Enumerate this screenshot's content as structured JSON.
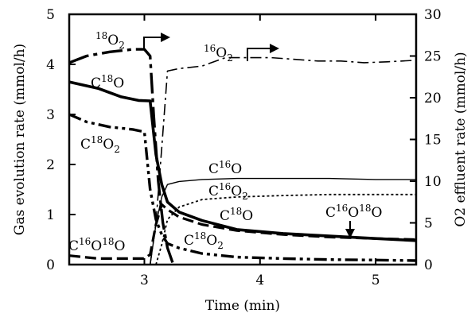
{
  "chart_data": {
    "type": "line",
    "xlabel": "Time (min)",
    "ylabel": "Gas evolution rate (mmol/h)",
    "y2label": "O2 effluent rate (mmol/h)",
    "xlim": [
      2.35,
      5.35
    ],
    "ylim": [
      0,
      5
    ],
    "y2lim": [
      0,
      30
    ],
    "x_ticks": [
      3,
      4,
      5
    ],
    "y_ticks": [
      0,
      1,
      2,
      3,
      4,
      5
    ],
    "y2_ticks": [
      0,
      5,
      10,
      15,
      20,
      25,
      30
    ],
    "grid": false,
    "series": [
      {
        "name": "C18O",
        "axis": "left",
        "style": "thick-solid",
        "x": [
          2.35,
          2.6,
          2.8,
          2.95,
          3.05,
          3.1,
          3.15,
          3.2,
          3.3,
          3.5,
          3.8,
          4.2,
          4.6,
          5.0,
          5.35
        ],
        "y": [
          3.65,
          3.52,
          3.35,
          3.28,
          3.27,
          2.2,
          1.6,
          1.25,
          1.05,
          0.88,
          0.7,
          0.62,
          0.57,
          0.52,
          0.48
        ]
      },
      {
        "name": "C18O2",
        "axis": "left",
        "style": "thick-dash-dot",
        "x": [
          2.35,
          2.5,
          2.7,
          2.9,
          3.0,
          3.05,
          3.1,
          3.15,
          3.2,
          3.3,
          3.5,
          3.8,
          4.2,
          4.6,
          5.0,
          5.35
        ],
        "y": [
          3.0,
          2.85,
          2.75,
          2.7,
          2.65,
          1.5,
          0.9,
          0.6,
          0.42,
          0.33,
          0.22,
          0.15,
          0.12,
          0.1,
          0.09,
          0.08
        ]
      },
      {
        "name": "C16O",
        "axis": "left",
        "style": "thin-solid",
        "x": [
          3.05,
          3.1,
          3.15,
          3.2,
          3.3,
          3.5,
          3.8,
          4.2,
          4.6,
          5.0,
          5.35
        ],
        "y": [
          0.0,
          0.8,
          1.35,
          1.6,
          1.66,
          1.7,
          1.72,
          1.72,
          1.72,
          1.7,
          1.7
        ]
      },
      {
        "name": "C16O2",
        "axis": "left",
        "style": "thin-dotted",
        "x": [
          3.1,
          3.15,
          3.2,
          3.3,
          3.5,
          3.8,
          4.2,
          4.6,
          5.0,
          5.35
        ],
        "y": [
          0.0,
          0.4,
          0.9,
          1.15,
          1.3,
          1.35,
          1.38,
          1.4,
          1.4,
          1.4
        ]
      },
      {
        "name": "C16O18O",
        "axis": "left",
        "style": "thick-dashed",
        "x": [
          2.35,
          2.6,
          2.8,
          3.0,
          3.05,
          3.1,
          3.15,
          3.2,
          3.3,
          3.5,
          3.8,
          4.2,
          4.6,
          5.0,
          5.35
        ],
        "y": [
          0.18,
          0.12,
          0.12,
          0.12,
          0.2,
          0.8,
          1.2,
          1.1,
          0.95,
          0.8,
          0.68,
          0.6,
          0.55,
          0.52,
          0.5
        ]
      },
      {
        "name": "18O2",
        "axis": "right",
        "style": "thick-long-dash",
        "x": [
          2.35,
          2.5,
          2.7,
          2.9,
          3.0,
          3.05,
          3.08,
          3.12,
          3.16,
          3.2,
          3.25
        ],
        "y": [
          24.2,
          25.0,
          25.5,
          25.8,
          25.8,
          25.0,
          18.0,
          10.0,
          5.0,
          2.0,
          0.0
        ]
      },
      {
        "name": "16O2",
        "axis": "right",
        "style": "thin-dash-dot",
        "x": [
          3.05,
          3.1,
          3.15,
          3.2,
          3.3,
          3.5,
          3.7,
          3.9,
          4.1,
          4.3,
          4.5,
          4.7,
          4.9,
          5.1,
          5.35
        ],
        "y": [
          0.0,
          5.0,
          14.0,
          23.2,
          23.5,
          23.8,
          24.8,
          24.8,
          24.8,
          24.6,
          24.4,
          24.4,
          24.2,
          24.3,
          24.5
        ]
      }
    ],
    "annotations": [
      {
        "base": "",
        "sup": "18",
        "mid": "O",
        "sub": "2",
        "post": "",
        "note": "arrow points to right axis"
      },
      {
        "base": "",
        "sup": "16",
        "mid": "O",
        "sub": "2",
        "post": "",
        "note": "arrow points to right axis"
      },
      {
        "base": "C",
        "sup": "18",
        "mid": "O",
        "sub": "",
        "post": ""
      },
      {
        "base": "C",
        "sup": "18",
        "mid": "O",
        "sub": "2",
        "post": ""
      },
      {
        "base": "C",
        "sup": "16",
        "mid": "O",
        "sub": "",
        "post": ""
      },
      {
        "base": "C",
        "sup": "16",
        "mid": "O",
        "sub": "2",
        "post": ""
      },
      {
        "base": "C",
        "sup": "18",
        "mid": "O",
        "sub": "",
        "post": ""
      },
      {
        "base": "C",
        "sup": "16",
        "mid": "O",
        "sub": "",
        "post": "18O"
      },
      {
        "base": "C",
        "sup": "16",
        "mid": "O",
        "sub": "",
        "post": "18O"
      },
      {
        "base": "C",
        "sup": "18",
        "mid": "O",
        "sub": "2",
        "post": ""
      }
    ]
  }
}
